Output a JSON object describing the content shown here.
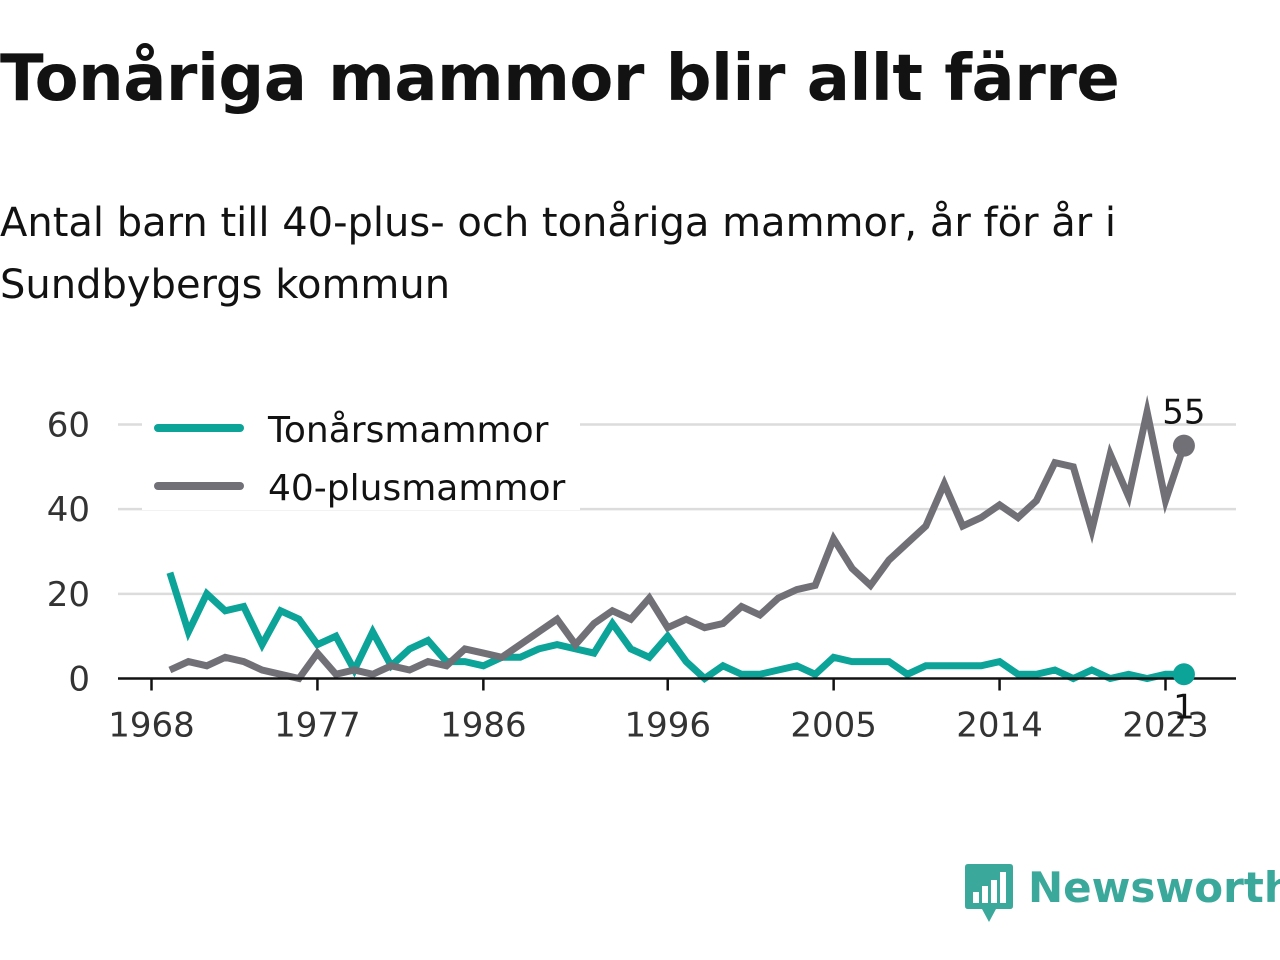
{
  "title": "Tonåriga mammor blir allt färre",
  "subtitle": "Antal barn till 40-plus- och tonåriga mammor, år för år i Sundbybergs kommun",
  "brand": {
    "name": "Newsworthy",
    "color": "#3aa89b",
    "icon": "bar-chart-speech-bubble-icon"
  },
  "colors": {
    "teen": "#0ca399",
    "forty": "#717077",
    "grid": "#dcdcdc",
    "axis": "#121212"
  },
  "chart_data": {
    "type": "line",
    "x": [
      1969,
      1970,
      1971,
      1972,
      1973,
      1974,
      1975,
      1976,
      1977,
      1978,
      1979,
      1980,
      1981,
      1982,
      1983,
      1984,
      1985,
      1986,
      1987,
      1988,
      1989,
      1990,
      1991,
      1992,
      1993,
      1994,
      1995,
      1996,
      1997,
      1998,
      1999,
      2000,
      2001,
      2002,
      2003,
      2004,
      2005,
      2006,
      2007,
      2008,
      2009,
      2010,
      2011,
      2012,
      2013,
      2014,
      2015,
      2016,
      2017,
      2018,
      2019,
      2020,
      2021,
      2022,
      2023,
      2024
    ],
    "series": [
      {
        "name": "Tonårsmammor",
        "values": [
          25,
          11,
          20,
          16,
          17,
          8,
          16,
          14,
          8,
          10,
          2,
          11,
          3,
          7,
          9,
          4,
          4,
          3,
          5,
          5,
          7,
          8,
          7,
          6,
          13,
          7,
          5,
          10,
          4,
          0,
          3,
          1,
          1,
          2,
          3,
          1,
          5,
          4,
          4,
          4,
          1,
          3,
          3,
          3,
          3,
          4,
          1,
          1,
          2,
          0,
          2,
          0,
          1,
          0,
          1,
          1
        ]
      },
      {
        "name": "40-plusmammor",
        "values": [
          2,
          4,
          3,
          5,
          4,
          2,
          1,
          0,
          6,
          1,
          2,
          1,
          3,
          2,
          4,
          3,
          7,
          6,
          5,
          8,
          11,
          14,
          8,
          13,
          16,
          14,
          19,
          12,
          14,
          12,
          13,
          17,
          15,
          19,
          21,
          22,
          33,
          26,
          22,
          28,
          32,
          36,
          46,
          36,
          38,
          41,
          38,
          42,
          51,
          50,
          35,
          53,
          43,
          63,
          42,
          55
        ]
      }
    ],
    "x_ticks": [
      "1968",
      "1977",
      "1986",
      "1996",
      "2005",
      "2014",
      "2023"
    ],
    "y_ticks": [
      "0",
      "20",
      "40",
      "60"
    ],
    "ylim": [
      0,
      63
    ],
    "grid": true,
    "legend_position": "top-left",
    "end_labels": {
      "Tonårsmammor": "1",
      "40-plusmammor": "55"
    }
  }
}
